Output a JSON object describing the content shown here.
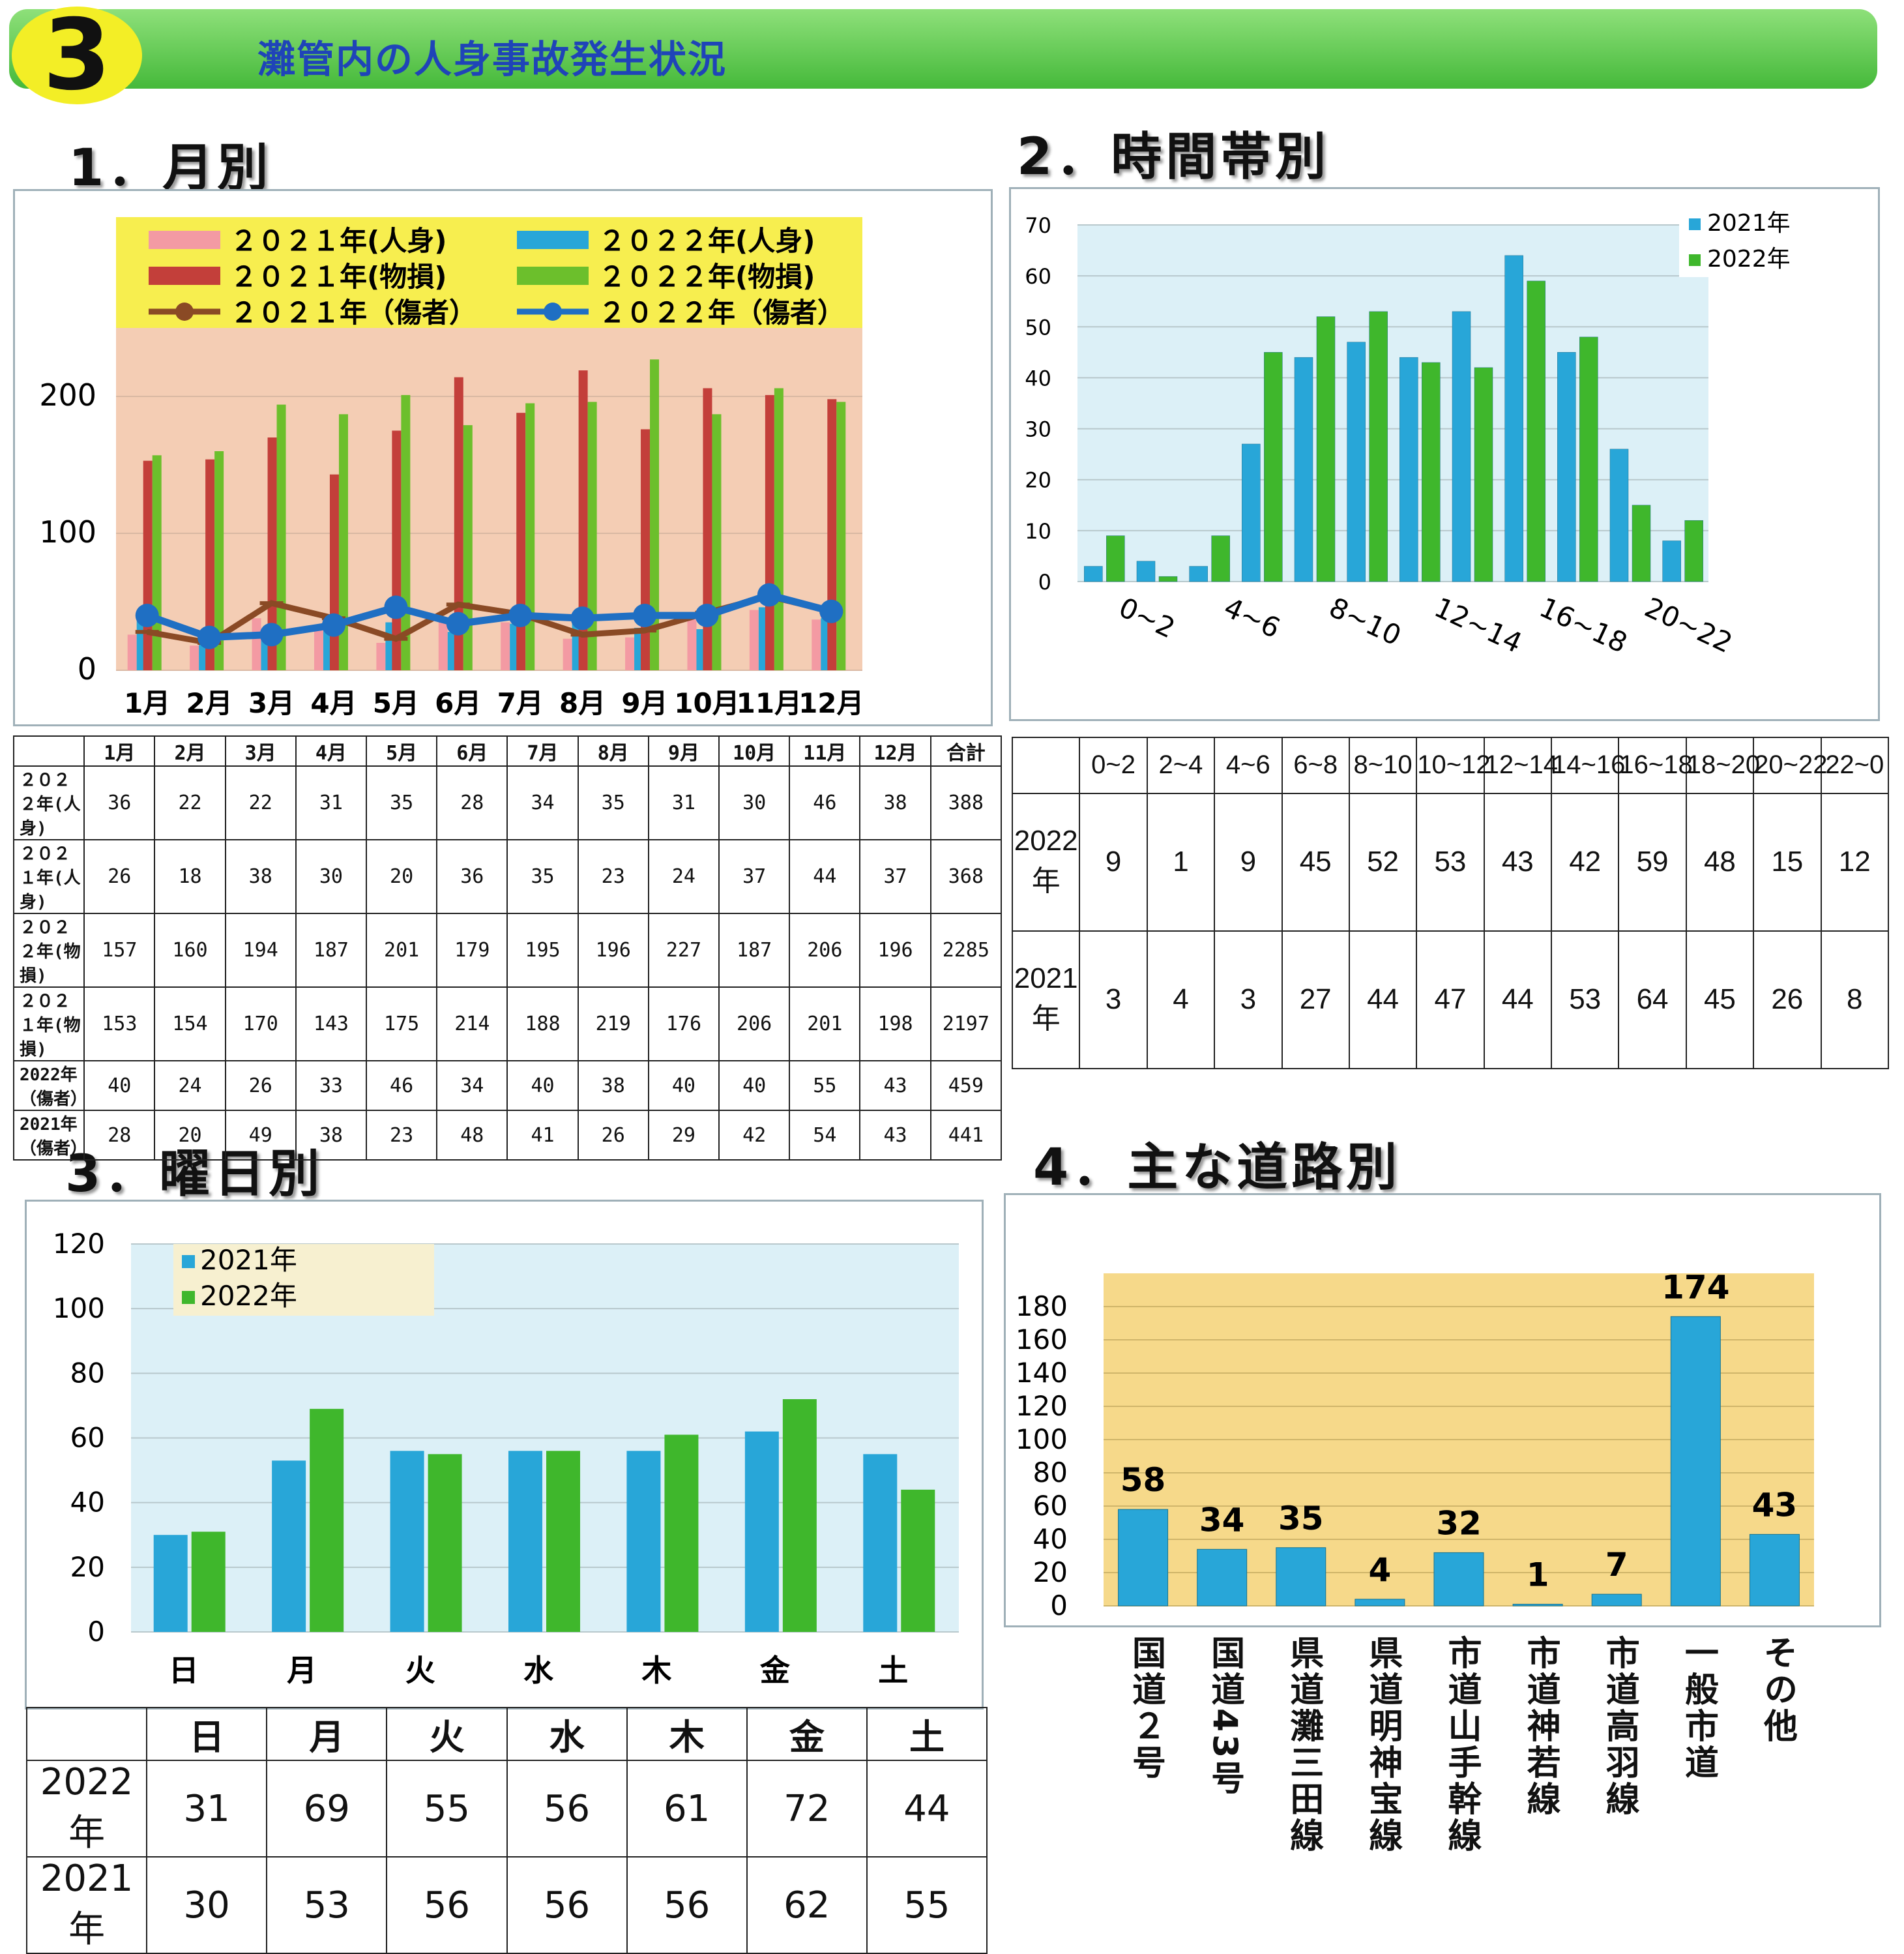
{
  "section_number": "3",
  "section_title": "灘管内の人身事故発生状況",
  "titles": {
    "monthly": "1．月別",
    "timeband": "2．時間帯別",
    "weekday": "3．曜日別",
    "road": "4．主な道路別"
  },
  "chart_data": [
    {
      "type": "bar",
      "id": "monthly",
      "categories": [
        "1月",
        "2月",
        "3月",
        "4月",
        "5月",
        "6月",
        "7月",
        "8月",
        "9月",
        "10月",
        "11月",
        "12月"
      ],
      "ylim": [
        0,
        250
      ],
      "yticks": [
        "0",
        "100",
        "200"
      ],
      "legend_placement": "top",
      "series": [
        {
          "name": "２０２１年(人身)",
          "kind": "bar",
          "color": "#f39aa3",
          "values": [
            26,
            18,
            38,
            30,
            20,
            36,
            35,
            23,
            24,
            37,
            44,
            37
          ]
        },
        {
          "name": "２０２２年(人身)",
          "kind": "bar",
          "color": "#28a6d8",
          "values": [
            36,
            22,
            22,
            31,
            35,
            28,
            34,
            35,
            31,
            30,
            46,
            38
          ]
        },
        {
          "name": "２０２１年(物損)",
          "kind": "bar",
          "color": "#c33f3a",
          "values": [
            153,
            154,
            170,
            143,
            175,
            214,
            188,
            219,
            176,
            206,
            201,
            198
          ]
        },
        {
          "name": "２０２２年(物損)",
          "kind": "bar",
          "color": "#6cbf2c",
          "values": [
            157,
            160,
            194,
            187,
            201,
            179,
            195,
            196,
            227,
            187,
            206,
            196
          ]
        },
        {
          "name": "２０２１年（傷者）",
          "kind": "line",
          "color": "#8a4a25",
          "values": [
            28,
            20,
            49,
            38,
            23,
            48,
            41,
            26,
            29,
            42,
            54,
            43
          ]
        },
        {
          "name": "２０２２年（傷者）",
          "kind": "line",
          "color": "#1f6fc3",
          "values": [
            40,
            24,
            26,
            33,
            46,
            34,
            40,
            38,
            40,
            40,
            55,
            43
          ]
        }
      ]
    },
    {
      "type": "bar",
      "id": "timeband",
      "categories": [
        "0~2",
        "2~4",
        "4~6",
        "6~8",
        "8~10",
        "10~12",
        "12~14",
        "14~16",
        "16~18",
        "18~20",
        "20~22",
        "22~0"
      ],
      "x_tick_labels": [
        "0~2",
        "4~6",
        "8~10",
        "12~14",
        "16~18",
        "20~22"
      ],
      "ylim": [
        0,
        70
      ],
      "yticks": [
        "0",
        "10",
        "20",
        "30",
        "40",
        "50",
        "60",
        "70"
      ],
      "legend_placement": "top-right",
      "series": [
        {
          "name": "2021年",
          "color": "#28a6d8",
          "values": [
            3,
            4,
            3,
            27,
            44,
            47,
            44,
            53,
            64,
            45,
            26,
            8
          ]
        },
        {
          "name": "2022年",
          "color": "#3fb72c",
          "values": [
            9,
            1,
            9,
            45,
            52,
            53,
            43,
            42,
            59,
            48,
            15,
            12
          ]
        }
      ]
    },
    {
      "type": "bar",
      "id": "weekday",
      "categories": [
        "日",
        "月",
        "火",
        "水",
        "木",
        "金",
        "土"
      ],
      "ylim": [
        0,
        120
      ],
      "yticks": [
        "0",
        "20",
        "40",
        "60",
        "80",
        "100",
        "120"
      ],
      "legend_placement": "top-left",
      "series": [
        {
          "name": "2021年",
          "color": "#28a6d8",
          "values": [
            30,
            53,
            56,
            56,
            56,
            62,
            55
          ]
        },
        {
          "name": "2022年",
          "color": "#3fb72c",
          "values": [
            31,
            69,
            55,
            56,
            61,
            72,
            44
          ]
        }
      ]
    },
    {
      "type": "bar",
      "id": "road",
      "categories": [
        "国道２号",
        "国道43号",
        "県道灘三田線",
        "県道明神宝線",
        "市道山手幹線",
        "市道神若線",
        "市道高羽線",
        "一般市道",
        "その他"
      ],
      "values": [
        58,
        34,
        35,
        4,
        32,
        1,
        7,
        174,
        43
      ],
      "data_labels": [
        "58",
        "34",
        "35",
        "4",
        "32",
        "1",
        "7",
        "174",
        "43"
      ],
      "ylim": [
        0,
        180
      ],
      "yticks": [
        "0",
        "20",
        "40",
        "60",
        "80",
        "100",
        "120",
        "140",
        "160",
        "180"
      ],
      "color": "#28a6d8"
    }
  ],
  "tables": {
    "monthly": {
      "headers": [
        "",
        "1月",
        "2月",
        "3月",
        "4月",
        "5月",
        "6月",
        "7月",
        "8月",
        "9月",
        "10月",
        "11月",
        "12月",
        "合計"
      ],
      "rows": [
        [
          "２０２２年(人身)",
          "36",
          "22",
          "22",
          "31",
          "35",
          "28",
          "34",
          "35",
          "31",
          "30",
          "46",
          "38",
          "388"
        ],
        [
          "２０２１年(人身)",
          "26",
          "18",
          "38",
          "30",
          "20",
          "36",
          "35",
          "23",
          "24",
          "37",
          "44",
          "37",
          "368"
        ],
        [
          "２０２２年(物損)",
          "157",
          "160",
          "194",
          "187",
          "201",
          "179",
          "195",
          "196",
          "227",
          "187",
          "206",
          "196",
          "2285"
        ],
        [
          "２０２１年(物損)",
          "153",
          "154",
          "170",
          "143",
          "175",
          "214",
          "188",
          "219",
          "176",
          "206",
          "201",
          "198",
          "2197"
        ],
        [
          "2022年（傷者）",
          "40",
          "24",
          "26",
          "33",
          "46",
          "34",
          "40",
          "38",
          "40",
          "40",
          "55",
          "43",
          "459"
        ],
        [
          "2021年（傷者）",
          "28",
          "20",
          "49",
          "38",
          "23",
          "48",
          "41",
          "26",
          "29",
          "42",
          "54",
          "43",
          "441"
        ]
      ]
    },
    "timeband": {
      "headers": [
        "",
        "0~2",
        "2~4",
        "4~6",
        "6~8",
        "8~10",
        "10~12",
        "12~14",
        "14~16",
        "16~18",
        "18~20",
        "20~22",
        "22~0"
      ],
      "rows": [
        [
          "2022年",
          "9",
          "1",
          "9",
          "45",
          "52",
          "53",
          "43",
          "42",
          "59",
          "48",
          "15",
          "12"
        ],
        [
          "2021年",
          "3",
          "4",
          "3",
          "27",
          "44",
          "47",
          "44",
          "53",
          "64",
          "45",
          "26",
          "8"
        ]
      ]
    },
    "weekday": {
      "headers": [
        "",
        "日",
        "月",
        "火",
        "水",
        "木",
        "金",
        "土"
      ],
      "rows": [
        [
          "2022年",
          "31",
          "69",
          "55",
          "56",
          "61",
          "72",
          "44"
        ],
        [
          "2021年",
          "30",
          "53",
          "56",
          "56",
          "56",
          "62",
          "55"
        ]
      ]
    }
  }
}
